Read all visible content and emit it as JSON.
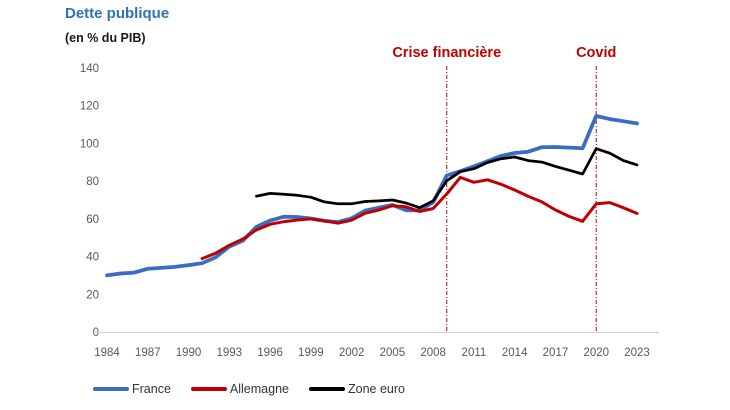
{
  "header": {
    "title": "Dette publique",
    "subtitle": "(en % du PIB)"
  },
  "colors": {
    "title_blue": "#2E74B5",
    "france_blue": "#3B6CC4",
    "allemagne_red": "#C00000",
    "zone_euro_black": "#000000",
    "annotation_red": "#C00000",
    "axis_text_gray": "#595959",
    "axis_line_gray": "#CFCFCF"
  },
  "chart_data": {
    "type": "line",
    "title": "Dette publique",
    "subtitle": "(en % du PIB)",
    "xlabel": "",
    "ylabel": "",
    "xlim": [
      1984,
      2023
    ],
    "ylim": [
      0,
      140
    ],
    "grid": false,
    "legend_position": "bottom",
    "xticks": [
      1984,
      1987,
      1990,
      1993,
      1996,
      1999,
      2002,
      2005,
      2008,
      2011,
      2014,
      2017,
      2020,
      2023
    ],
    "yticks": [
      0,
      20,
      40,
      60,
      80,
      100,
      120,
      140
    ],
    "annotations": [
      {
        "label": "Crise financière",
        "year": 2009
      },
      {
        "label": "Covid",
        "year": 2020
      }
    ],
    "series": [
      {
        "name": "France",
        "color": "#3B6CC4",
        "line_width": 3.75,
        "start_year": 1984,
        "values": [
          30.0,
          31.0,
          31.5,
          33.5,
          34.0,
          34.5,
          35.5,
          36.5,
          39.6,
          45.3,
          48.4,
          55.8,
          59.1,
          61.1,
          61.0,
          60.2,
          58.9,
          58.3,
          60.3,
          64.4,
          65.9,
          67.4,
          64.6,
          64.5,
          68.8,
          83.0,
          85.3,
          87.8,
          90.6,
          93.4,
          94.9,
          95.6,
          98.0,
          98.1,
          97.8,
          97.4,
          114.6,
          112.9,
          111.8,
          110.6
        ]
      },
      {
        "name": "Allemagne",
        "color": "#C00000",
        "line_width": 3.0,
        "start_year": 1991,
        "values": [
          38.9,
          41.8,
          46.0,
          49.3,
          54.2,
          57.1,
          58.5,
          59.4,
          60.0,
          58.9,
          57.7,
          59.3,
          63.0,
          64.7,
          67.0,
          66.4,
          63.9,
          65.5,
          73.2,
          82.0,
          79.4,
          80.7,
          78.3,
          75.3,
          71.9,
          69.0,
          64.7,
          61.3,
          58.7,
          68.0,
          68.6,
          65.9,
          62.9
        ]
      },
      {
        "name": "Zone euro",
        "color": "#000000",
        "line_width": 2.75,
        "start_year": 1995,
        "values": [
          72.0,
          73.5,
          73.0,
          72.5,
          71.5,
          69.0,
          68.0,
          68.0,
          69.2,
          69.5,
          70.0,
          68.4,
          65.9,
          69.6,
          80.2,
          85.0,
          86.6,
          89.9,
          91.9,
          92.8,
          90.9,
          90.1,
          87.8,
          85.8,
          83.8,
          97.2,
          94.8,
          90.9,
          88.6
        ]
      }
    ]
  }
}
